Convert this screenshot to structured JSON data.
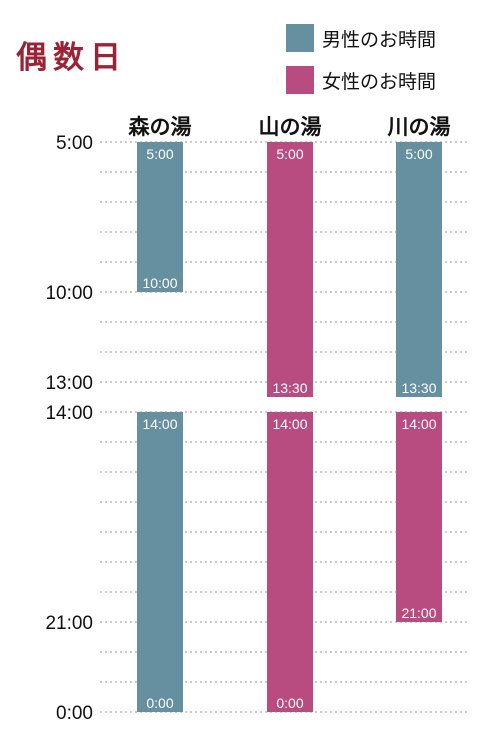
{
  "title": "偶数日",
  "legend": [
    {
      "label": "男性のお時間",
      "color": "#6690a0"
    },
    {
      "label": "女性のお時間",
      "color": "#b84b80"
    }
  ],
  "chart_data": {
    "type": "bar",
    "orientation": "vertical-time",
    "categories": [
      "森の湯",
      "山の湯",
      "川の湯"
    ],
    "y_tick_labels": [
      "5:00",
      "10:00",
      "13:00",
      "14:00",
      "21:00",
      "0:00"
    ],
    "grid": "dotted-hourly",
    "series": [
      {
        "name": "男性のお時間",
        "color": "#6690a0"
      },
      {
        "name": "女性のお時間",
        "color": "#b84b80"
      }
    ],
    "bars": [
      {
        "category": "森の湯",
        "series": "男性のお時間",
        "start": 5,
        "end": 10,
        "start_label": "5:00",
        "end_label": "10:00"
      },
      {
        "category": "森の湯",
        "series": "男性のお時間",
        "start": 14,
        "end": 24,
        "start_label": "14:00",
        "end_label": "0:00"
      },
      {
        "category": "山の湯",
        "series": "女性のお時間",
        "start": 5,
        "end": 13.5,
        "start_label": "5:00",
        "end_label": "13:30"
      },
      {
        "category": "山の湯",
        "series": "女性のお時間",
        "start": 14,
        "end": 24,
        "start_label": "14:00",
        "end_label": "0:00"
      },
      {
        "category": "川の湯",
        "series": "男性のお時間",
        "start": 5,
        "end": 13.5,
        "start_label": "5:00",
        "end_label": "13:30"
      },
      {
        "category": "川の湯",
        "series": "女性のお時間",
        "start": 14,
        "end": 21,
        "start_label": "14:00",
        "end_label": "21:00"
      }
    ]
  }
}
